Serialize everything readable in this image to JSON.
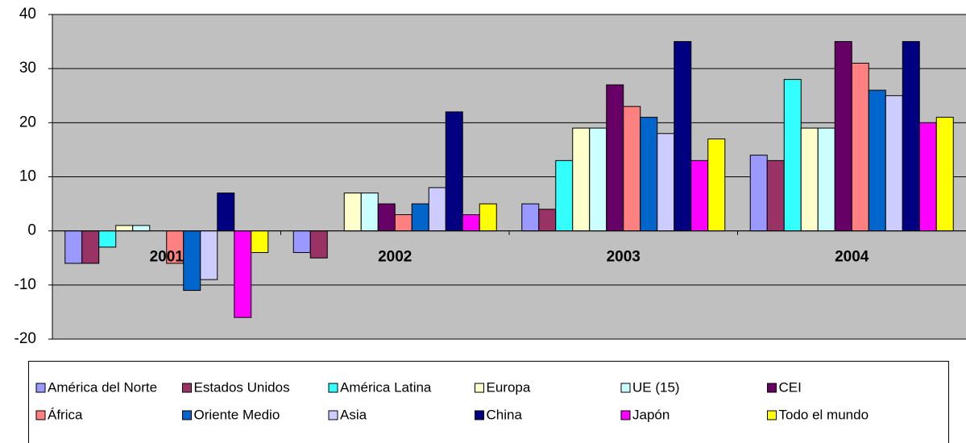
{
  "chart_data": {
    "type": "bar",
    "categories": [
      "2001",
      "2002",
      "2003",
      "2004"
    ],
    "series": [
      {
        "name": "América del Norte",
        "color": "#9999ff",
        "values": [
          -6,
          -4,
          5,
          14
        ]
      },
      {
        "name": "Estados Unidos",
        "color": "#993366",
        "values": [
          -6,
          -5,
          4,
          13
        ]
      },
      {
        "name": "América Latina",
        "color": "#33ffff",
        "values": [
          -3,
          0,
          13,
          28
        ]
      },
      {
        "name": "Europa",
        "color": "#ffffcc",
        "values": [
          1,
          7,
          19,
          19
        ]
      },
      {
        "name": "UE (15)",
        "color": "#ccffff",
        "values": [
          1,
          7,
          19,
          19
        ]
      },
      {
        "name": "CEI",
        "color": "#660066",
        "values": [
          0,
          5,
          27,
          35
        ]
      },
      {
        "name": "África",
        "color": "#ff8080",
        "values": [
          -6,
          3,
          23,
          31
        ]
      },
      {
        "name": "Oriente Medio",
        "color": "#0066cc",
        "values": [
          -11,
          5,
          21,
          26
        ]
      },
      {
        "name": "Asia",
        "color": "#ccccff",
        "values": [
          -9,
          8,
          18,
          25
        ]
      },
      {
        "name": "China",
        "color": "#000080",
        "values": [
          7,
          22,
          35,
          35
        ]
      },
      {
        "name": "Japón",
        "color": "#ff00ff",
        "values": [
          -16,
          3,
          13,
          20
        ]
      },
      {
        "name": "Todo el mundo",
        "color": "#ffff00",
        "values": [
          -4,
          5,
          17,
          21
        ]
      }
    ],
    "ylim": [
      -20,
      40
    ],
    "yticks": [
      -20,
      -10,
      0,
      10,
      20,
      30,
      40
    ],
    "grid": true,
    "legend": "bottom"
  }
}
